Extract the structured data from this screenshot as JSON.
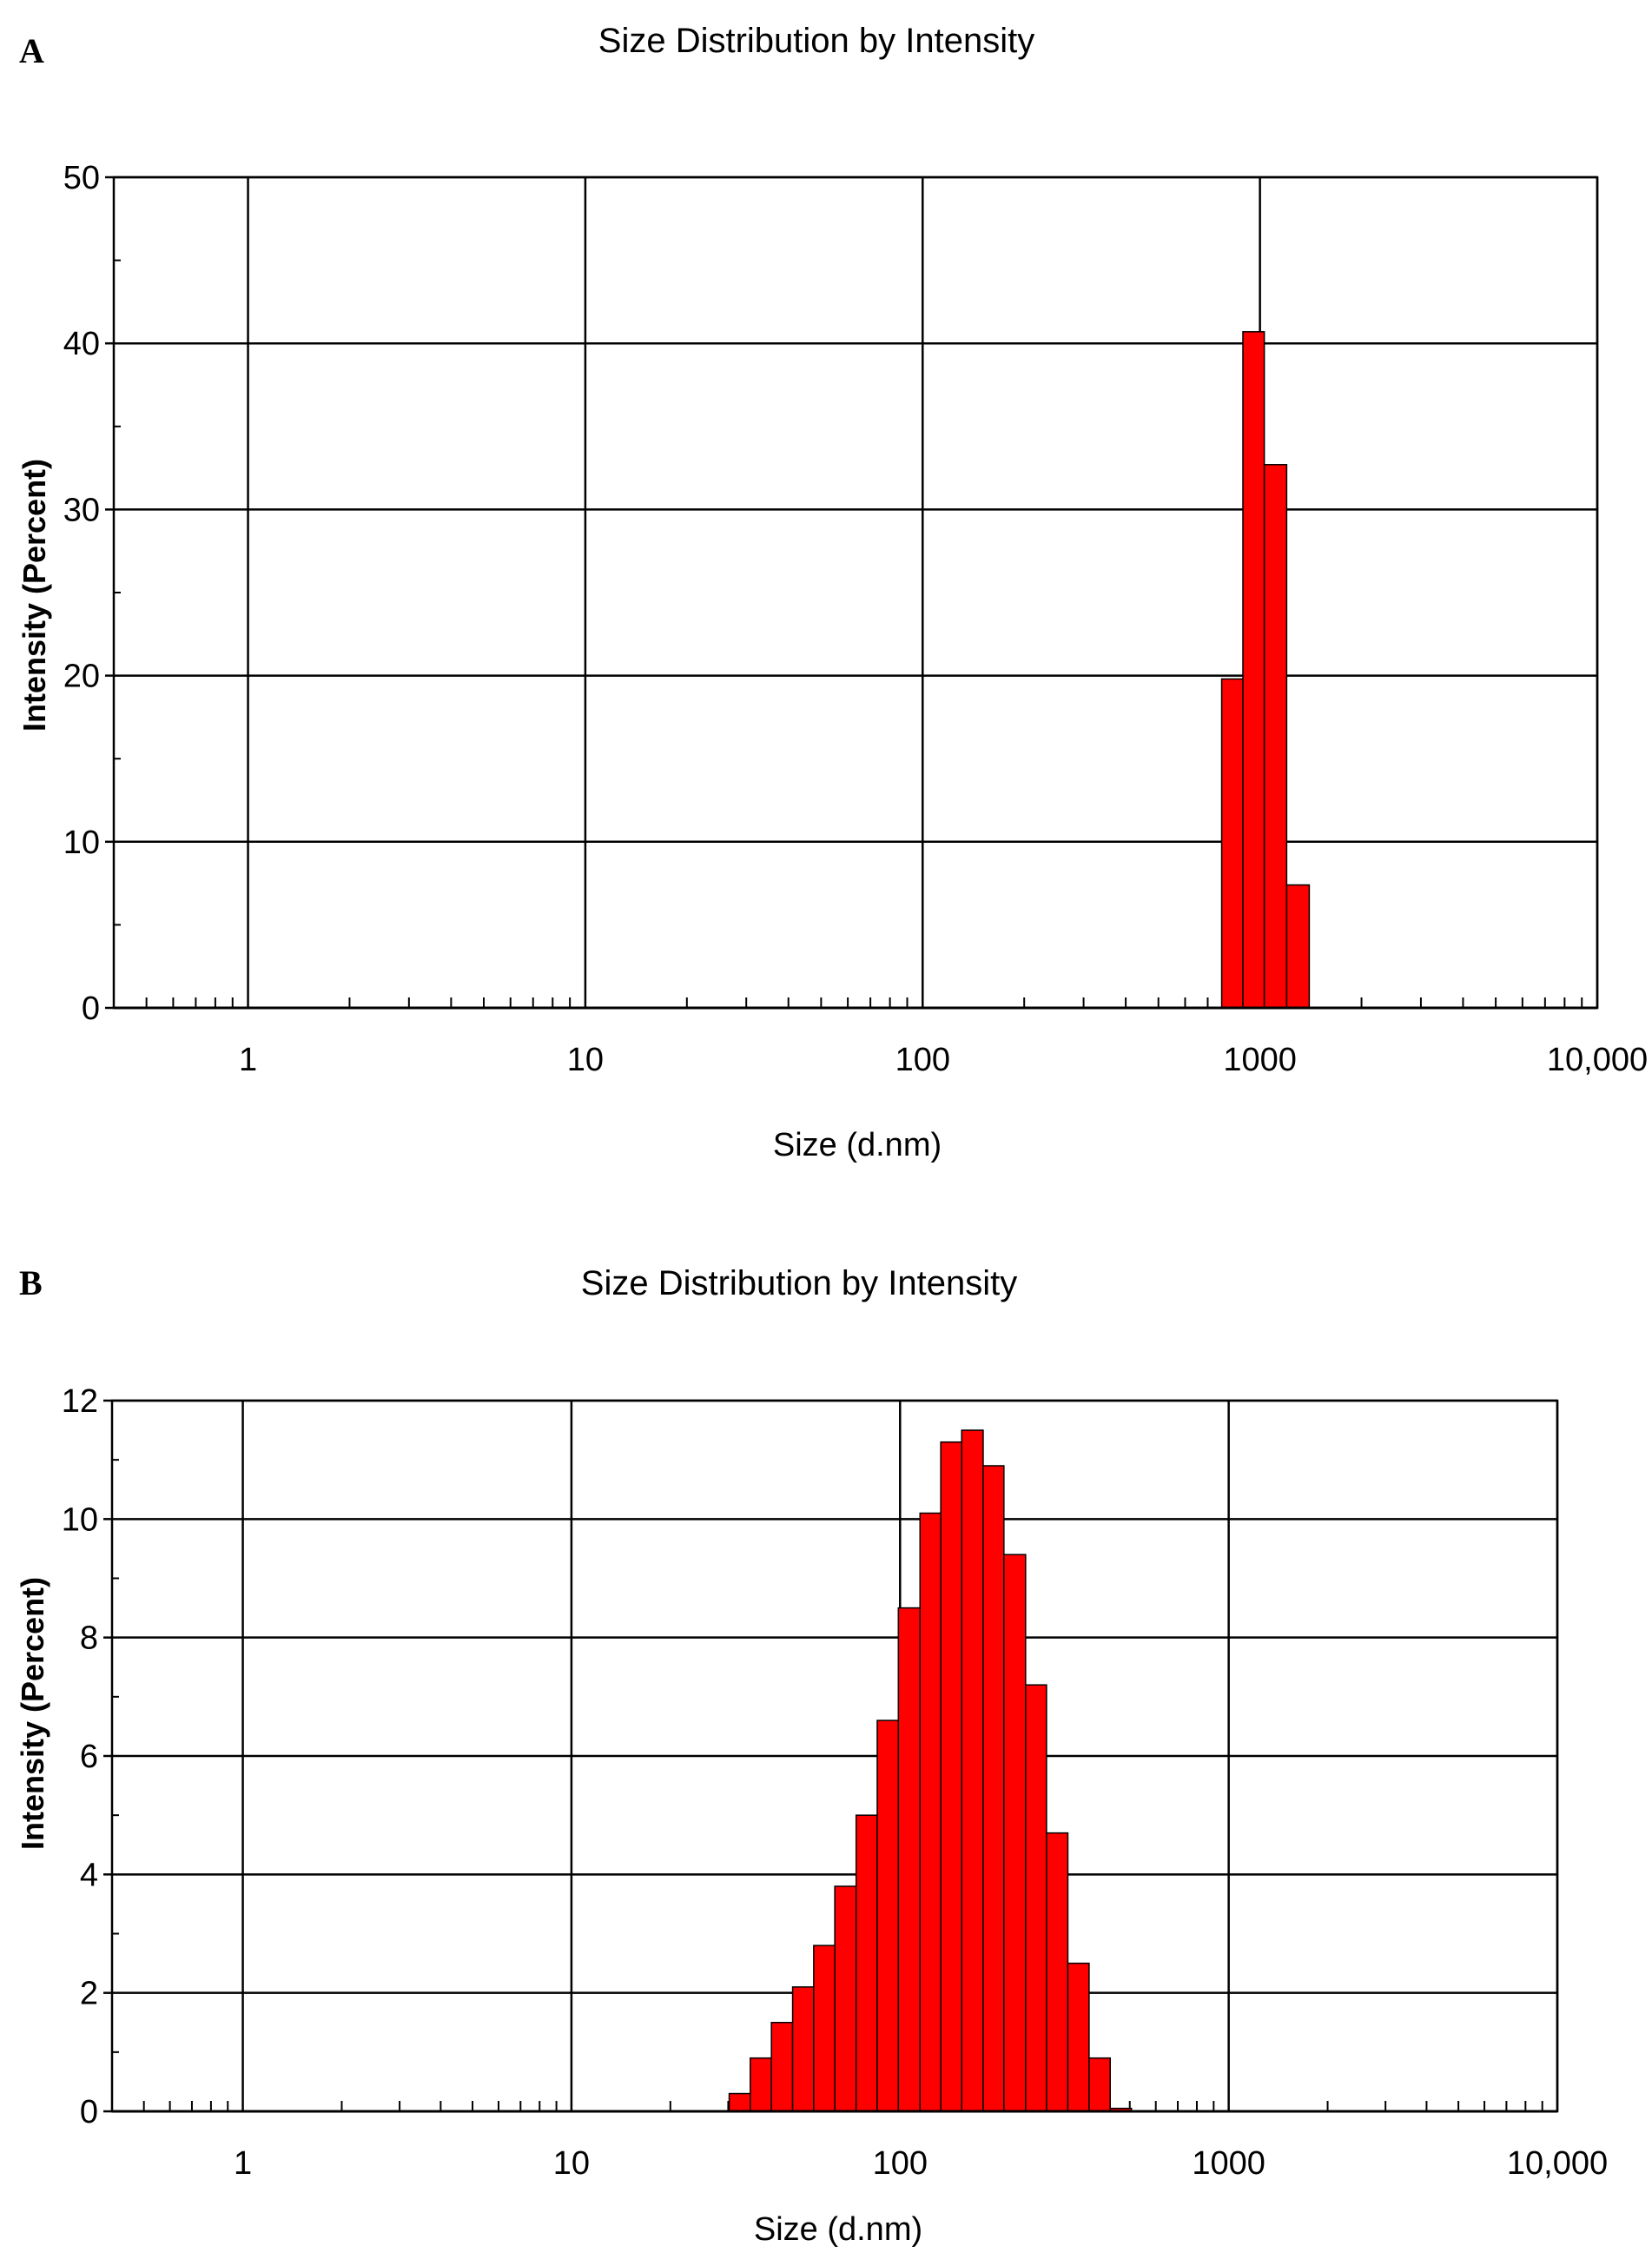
{
  "figure": {
    "panels": [
      {
        "letter": "A"
      },
      {
        "letter": "B"
      }
    ]
  },
  "colors": {
    "bar_fill": "#ff0000",
    "bar_stroke": "#000000",
    "grid": "#000000",
    "background": "#ffffff"
  },
  "chart_data": [
    {
      "type": "bar",
      "title": "Size Distribution by Intensity",
      "xlabel": "Size (d.nm)",
      "ylabel": "Intensity (Percent)",
      "x_scale": "log",
      "xlim": [
        0.4,
        10000
      ],
      "ylim": [
        0,
        50
      ],
      "grid": true,
      "x_ticks": [
        1,
        10,
        100,
        1000,
        10000
      ],
      "x_tick_labels": [
        "1",
        "10",
        "100",
        "1000",
        "10,000"
      ],
      "y_ticks": [
        0,
        10,
        20,
        30,
        40,
        50
      ],
      "y_tick_labels": [
        "0",
        "10",
        "20",
        "30",
        "40",
        "50"
      ],
      "bins": [
        {
          "x0": 770,
          "x1": 890,
          "value": 19.8
        },
        {
          "x0": 890,
          "x1": 1030,
          "value": 40.7
        },
        {
          "x0": 1030,
          "x1": 1200,
          "value": 32.7
        },
        {
          "x0": 1200,
          "x1": 1400,
          "value": 7.4
        }
      ]
    },
    {
      "type": "bar",
      "title": "Size Distribution by Intensity",
      "xlabel": "Size (d.nm)",
      "ylabel": "Intensity (Percent)",
      "x_scale": "log",
      "xlim": [
        0.4,
        10000
      ],
      "ylim": [
        0,
        12
      ],
      "grid": true,
      "x_ticks": [
        1,
        10,
        100,
        1000,
        10000
      ],
      "x_tick_labels": [
        "1",
        "10",
        "100",
        "1000",
        "10,000"
      ],
      "y_ticks": [
        0,
        2,
        4,
        6,
        8,
        10,
        12
      ],
      "y_tick_labels": [
        "0",
        "2",
        "4",
        "6",
        "8",
        "10",
        "12"
      ],
      "bins": [
        {
          "x0": 30.2,
          "x1": 35.0,
          "value": 0.3
        },
        {
          "x0": 35.0,
          "x1": 40.6,
          "value": 0.9
        },
        {
          "x0": 40.6,
          "x1": 47.1,
          "value": 1.5
        },
        {
          "x0": 47.1,
          "x1": 54.6,
          "value": 2.1
        },
        {
          "x0": 54.6,
          "x1": 63.3,
          "value": 2.8
        },
        {
          "x0": 63.3,
          "x1": 73.5,
          "value": 3.8
        },
        {
          "x0": 73.5,
          "x1": 85.2,
          "value": 5.0
        },
        {
          "x0": 85.2,
          "x1": 98.8,
          "value": 6.6
        },
        {
          "x0": 98.8,
          "x1": 115,
          "value": 8.5
        },
        {
          "x0": 115,
          "x1": 133,
          "value": 10.1
        },
        {
          "x0": 133,
          "x1": 154,
          "value": 11.3
        },
        {
          "x0": 154,
          "x1": 179,
          "value": 11.5
        },
        {
          "x0": 179,
          "x1": 207,
          "value": 10.9
        },
        {
          "x0": 207,
          "x1": 241,
          "value": 9.4
        },
        {
          "x0": 241,
          "x1": 279,
          "value": 7.2
        },
        {
          "x0": 279,
          "x1": 324,
          "value": 4.7
        },
        {
          "x0": 324,
          "x1": 376,
          "value": 2.5
        },
        {
          "x0": 376,
          "x1": 436,
          "value": 0.9
        },
        {
          "x0": 436,
          "x1": 506,
          "value": 0.05
        }
      ]
    }
  ]
}
